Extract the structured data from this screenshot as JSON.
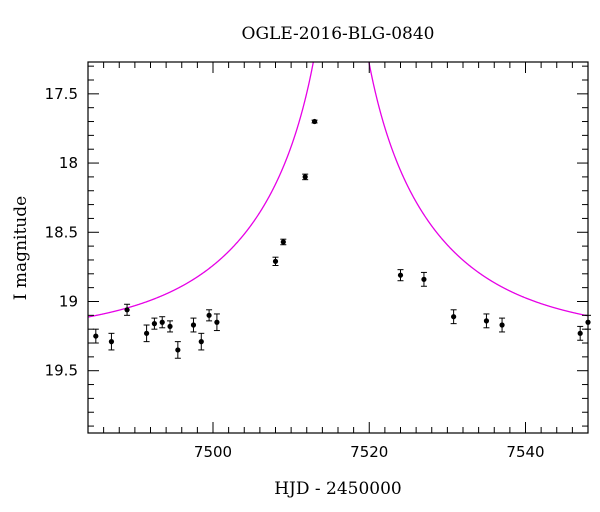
{
  "chart_data": {
    "type": "scatter",
    "title": "OGLE-2016-BLG-0840",
    "xlabel": "HJD - 2450000",
    "ylabel": "I magnitude",
    "xlim": [
      7484,
      7548
    ],
    "ylim": [
      19.95,
      17.27
    ],
    "y_inverted": true,
    "grid": false,
    "x_ticks_major": [
      7500,
      7520,
      7540
    ],
    "x_tick_labels": [
      "7500",
      "7520",
      "7540"
    ],
    "x_minor_step": 2,
    "y_ticks_major": [
      17.5,
      18,
      18.5,
      19,
      19.5
    ],
    "y_tick_labels": [
      "17.5",
      "18",
      "18.5",
      "19",
      "19.5"
    ],
    "y_minor_step": 0.1,
    "colors": {
      "model": "#e600e6",
      "points": "#000000",
      "axes": "#000000"
    },
    "series": [
      {
        "kind": "points-with-errorbars",
        "x": [
          7485.0,
          7487.0,
          7489.0,
          7491.5,
          7492.5,
          7493.5,
          7494.5,
          7495.5,
          7497.5,
          7498.5,
          7499.5,
          7500.5,
          7508.0,
          7509.0,
          7511.8,
          7513.0,
          7524.0,
          7527.0,
          7530.8,
          7535.0,
          7537.0,
          7547.0,
          7548.0
        ],
        "y": [
          19.25,
          19.29,
          19.06,
          19.23,
          19.16,
          19.15,
          19.18,
          19.35,
          19.17,
          19.29,
          19.1,
          19.15,
          18.71,
          18.57,
          18.1,
          17.7,
          18.81,
          18.84,
          19.11,
          19.14,
          19.17,
          19.23,
          19.15
        ],
        "err": [
          0.05,
          0.06,
          0.04,
          0.06,
          0.04,
          0.04,
          0.04,
          0.06,
          0.05,
          0.06,
          0.04,
          0.06,
          0.03,
          0.02,
          0.02,
          0.01,
          0.04,
          0.05,
          0.05,
          0.05,
          0.05,
          0.05,
          0.05
        ]
      },
      {
        "kind": "model-curve",
        "model": "point-lens",
        "t0": 7516.4,
        "tE": 22.0,
        "u0": 0.015,
        "baseline_mag": 19.254
      }
    ]
  }
}
